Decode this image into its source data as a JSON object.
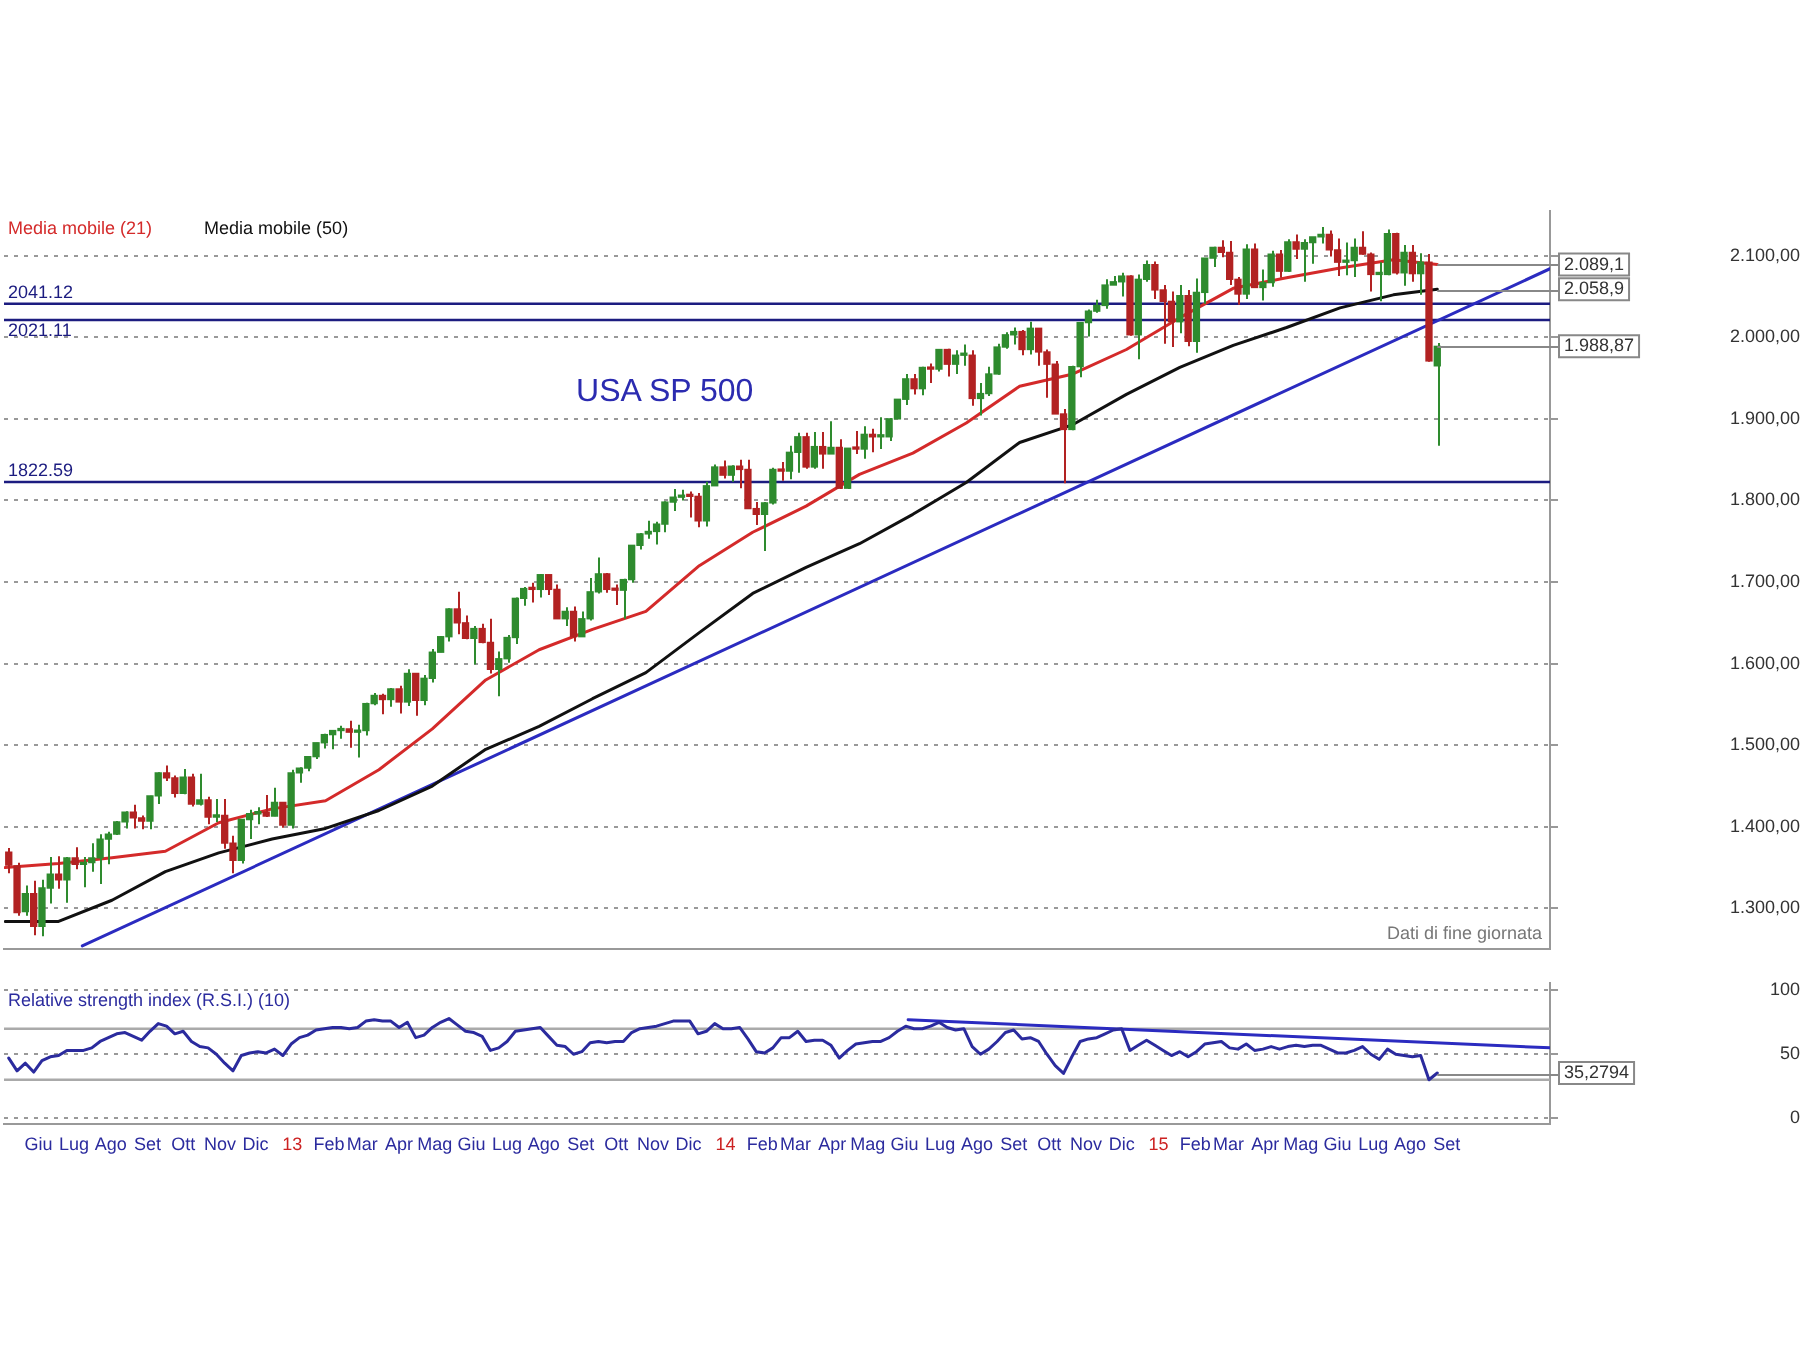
{
  "chart_data": [
    {
      "type": "candlestick",
      "title": "USA SP 500",
      "legend": "top left",
      "marker": "none",
      "grid": "y",
      "tick_labels": "y",
      "x": [
        "2012-05-07",
        "2012-05-14",
        "2012-05-21",
        "2012-05-28",
        "2012-06-04",
        "2012-06-11",
        "2012-06-18",
        "2012-06-25",
        "2012-07-02",
        "2012-07-09",
        "2012-07-16",
        "2012-07-23",
        "2012-07-30",
        "2012-08-06",
        "2012-08-13",
        "2012-08-20",
        "2012-08-27",
        "2012-09-03",
        "2012-09-10",
        "2012-09-17",
        "2012-09-24",
        "2012-10-01",
        "2012-10-08",
        "2012-10-15",
        "2012-10-22",
        "2012-10-29",
        "2012-11-05",
        "2012-11-12",
        "2012-11-19",
        "2012-11-26",
        "2012-12-03",
        "2012-12-10",
        "2012-12-17",
        "2012-12-24",
        "2012-12-31",
        "2013-01-07",
        "2013-01-14",
        "2013-01-21",
        "2013-01-28",
        "2013-02-04",
        "2013-02-11",
        "2013-02-18",
        "2013-02-25",
        "2013-03-04",
        "2013-03-11",
        "2013-03-18",
        "2013-03-25",
        "2013-04-01",
        "2013-04-08",
        "2013-04-15",
        "2013-04-22",
        "2013-04-29",
        "2013-05-06",
        "2013-05-13",
        "2013-05-20",
        "2013-05-27",
        "2013-06-03",
        "2013-06-10",
        "2013-06-17",
        "2013-06-24",
        "2013-07-01",
        "2013-07-08",
        "2013-07-15",
        "2013-07-22",
        "2013-07-29",
        "2013-08-05",
        "2013-08-12",
        "2013-08-19",
        "2013-08-26",
        "2013-09-02",
        "2013-09-09",
        "2013-09-16",
        "2013-09-23",
        "2013-09-30",
        "2013-10-07",
        "2013-10-14",
        "2013-10-21",
        "2013-10-28",
        "2013-11-04",
        "2013-11-11",
        "2013-11-18",
        "2013-11-25",
        "2013-12-02",
        "2013-12-09",
        "2013-12-16",
        "2013-12-23",
        "2013-12-30",
        "2014-01-06",
        "2014-01-13",
        "2014-01-20",
        "2014-01-27",
        "2014-02-03",
        "2014-02-10",
        "2014-02-17",
        "2014-02-24",
        "2014-03-03",
        "2014-03-10",
        "2014-03-17",
        "2014-03-24",
        "2014-03-31",
        "2014-04-07",
        "2014-04-14",
        "2014-04-21",
        "2014-04-28",
        "2014-05-05",
        "2014-05-12",
        "2014-05-19",
        "2014-05-26",
        "2014-06-02",
        "2014-06-09",
        "2014-06-16",
        "2014-06-23",
        "2014-06-30",
        "2014-07-07",
        "2014-07-14",
        "2014-07-21",
        "2014-07-28",
        "2014-08-04",
        "2014-08-11",
        "2014-08-18",
        "2014-08-25",
        "2014-09-01",
        "2014-09-08",
        "2014-09-15",
        "2014-09-22",
        "2014-09-29",
        "2014-10-06",
        "2014-10-13",
        "2014-10-20",
        "2014-10-27",
        "2014-11-03",
        "2014-11-10",
        "2014-11-17",
        "2014-11-24",
        "2014-12-01",
        "2014-12-08",
        "2014-12-15",
        "2014-12-22",
        "2014-12-29",
        "2015-01-05",
        "2015-01-12",
        "2015-01-19",
        "2015-01-26",
        "2015-02-02",
        "2015-02-09",
        "2015-02-16",
        "2015-02-23",
        "2015-03-02",
        "2015-03-09",
        "2015-03-16",
        "2015-03-23",
        "2015-03-30",
        "2015-04-06",
        "2015-04-13",
        "2015-04-20",
        "2015-04-27",
        "2015-05-04",
        "2015-05-11",
        "2015-05-18",
        "2015-05-25",
        "2015-06-01",
        "2015-06-08",
        "2015-06-15",
        "2015-06-22",
        "2015-06-29",
        "2015-07-06",
        "2015-07-13",
        "2015-07-20",
        "2015-07-27",
        "2015-08-03",
        "2015-08-10",
        "2015-08-17",
        "2015-08-24"
      ],
      "ohlc": [
        [
          1369,
          1374,
          1343,
          1353
        ],
        [
          1352,
          1356,
          1291,
          1295
        ],
        [
          1296,
          1328,
          1291,
          1318
        ],
        [
          1318,
          1334,
          1267,
          1278
        ],
        [
          1278,
          1335,
          1266,
          1325
        ],
        [
          1325,
          1363,
          1306,
          1342
        ],
        [
          1342,
          1364,
          1324,
          1335
        ],
        [
          1335,
          1363,
          1307,
          1362
        ],
        [
          1362,
          1375,
          1348,
          1354
        ],
        [
          1354,
          1363,
          1326,
          1356
        ],
        [
          1356,
          1380,
          1345,
          1362
        ],
        [
          1362,
          1391,
          1330,
          1385
        ],
        [
          1385,
          1394,
          1354,
          1391
        ],
        [
          1391,
          1407,
          1390,
          1406
        ],
        [
          1406,
          1419,
          1398,
          1418
        ],
        [
          1418,
          1427,
          1398,
          1411
        ],
        [
          1411,
          1414,
          1397,
          1407
        ],
        [
          1407,
          1438,
          1397,
          1438
        ],
        [
          1438,
          1467,
          1428,
          1466
        ],
        [
          1466,
          1475,
          1456,
          1460
        ],
        [
          1460,
          1463,
          1436,
          1441
        ],
        [
          1441,
          1471,
          1440,
          1461
        ],
        [
          1461,
          1465,
          1425,
          1428
        ],
        [
          1428,
          1465,
          1426,
          1433
        ],
        [
          1433,
          1437,
          1403,
          1412
        ],
        [
          1412,
          1434,
          1406,
          1414
        ],
        [
          1414,
          1434,
          1373,
          1380
        ],
        [
          1380,
          1389,
          1343,
          1359
        ],
        [
          1359,
          1409,
          1355,
          1409
        ],
        [
          1409,
          1421,
          1385,
          1416
        ],
        [
          1416,
          1424,
          1403,
          1418
        ],
        [
          1418,
          1439,
          1412,
          1413
        ],
        [
          1413,
          1448,
          1413,
          1430
        ],
        [
          1430,
          1430,
          1399,
          1402
        ],
        [
          1402,
          1470,
          1398,
          1466
        ],
        [
          1466,
          1473,
          1454,
          1472
        ],
        [
          1472,
          1486,
          1468,
          1486
        ],
        [
          1486,
          1503,
          1483,
          1503
        ],
        [
          1503,
          1514,
          1496,
          1513
        ],
        [
          1513,
          1518,
          1495,
          1518
        ],
        [
          1518,
          1524,
          1508,
          1520
        ],
        [
          1520,
          1530,
          1497,
          1516
        ],
        [
          1516,
          1525,
          1485,
          1518
        ],
        [
          1518,
          1552,
          1512,
          1551
        ],
        [
          1551,
          1564,
          1549,
          1561
        ],
        [
          1561,
          1563,
          1538,
          1556
        ],
        [
          1556,
          1570,
          1547,
          1569
        ],
        [
          1569,
          1573,
          1539,
          1553
        ],
        [
          1553,
          1593,
          1548,
          1588
        ],
        [
          1588,
          1588,
          1536,
          1555
        ],
        [
          1555,
          1586,
          1549,
          1582
        ],
        [
          1582,
          1618,
          1577,
          1614
        ],
        [
          1614,
          1634,
          1614,
          1633
        ],
        [
          1633,
          1668,
          1627,
          1667
        ],
        [
          1667,
          1688,
          1636,
          1650
        ],
        [
          1650,
          1659,
          1630,
          1631
        ],
        [
          1631,
          1646,
          1599,
          1643
        ],
        [
          1643,
          1649,
          1625,
          1626
        ],
        [
          1626,
          1655,
          1588,
          1593
        ],
        [
          1593,
          1615,
          1560,
          1606
        ],
        [
          1606,
          1635,
          1601,
          1632
        ],
        [
          1632,
          1681,
          1624,
          1680
        ],
        [
          1680,
          1694,
          1671,
          1692
        ],
        [
          1692,
          1699,
          1675,
          1691
        ],
        [
          1691,
          1710,
          1681,
          1709
        ],
        [
          1709,
          1709,
          1684,
          1691
        ],
        [
          1691,
          1697,
          1655,
          1655
        ],
        [
          1655,
          1669,
          1646,
          1664
        ],
        [
          1664,
          1670,
          1627,
          1633
        ],
        [
          1633,
          1664,
          1633,
          1655
        ],
        [
          1655,
          1705,
          1653,
          1688
        ],
        [
          1688,
          1730,
          1686,
          1710
        ],
        [
          1710,
          1711,
          1687,
          1691
        ],
        [
          1691,
          1697,
          1672,
          1690
        ],
        [
          1690,
          1704,
          1655,
          1703
        ],
        [
          1703,
          1745,
          1699,
          1745
        ],
        [
          1745,
          1760,
          1740,
          1759
        ],
        [
          1759,
          1775,
          1753,
          1762
        ],
        [
          1762,
          1774,
          1746,
          1771
        ],
        [
          1771,
          1799,
          1761,
          1798
        ],
        [
          1798,
          1814,
          1787,
          1804
        ],
        [
          1804,
          1813,
          1800,
          1806
        ],
        [
          1806,
          1811,
          1779,
          1805
        ],
        [
          1805,
          1809,
          1767,
          1775
        ],
        [
          1775,
          1823,
          1768,
          1818
        ],
        [
          1818,
          1844,
          1818,
          1841
        ],
        [
          1841,
          1849,
          1827,
          1831
        ],
        [
          1831,
          1843,
          1823,
          1842
        ],
        [
          1842,
          1850,
          1815,
          1838
        ],
        [
          1838,
          1850,
          1790,
          1790
        ],
        [
          1790,
          1798,
          1770,
          1783
        ],
        [
          1783,
          1798,
          1738,
          1797
        ],
        [
          1797,
          1840,
          1795,
          1838
        ],
        [
          1838,
          1847,
          1824,
          1836
        ],
        [
          1836,
          1867,
          1826,
          1859
        ],
        [
          1859,
          1883,
          1834,
          1878
        ],
        [
          1878,
          1883,
          1839,
          1841
        ],
        [
          1841,
          1884,
          1839,
          1866
        ],
        [
          1866,
          1884,
          1839,
          1857
        ],
        [
          1857,
          1897,
          1857,
          1865
        ],
        [
          1865,
          1875,
          1814,
          1815
        ],
        [
          1815,
          1864,
          1814,
          1864
        ],
        [
          1864,
          1885,
          1857,
          1863
        ],
        [
          1863,
          1891,
          1851,
          1881
        ],
        [
          1881,
          1888,
          1859,
          1878
        ],
        [
          1878,
          1902,
          1863,
          1878
        ],
        [
          1878,
          1901,
          1873,
          1900
        ],
        [
          1900,
          1924,
          1900,
          1924
        ],
        [
          1924,
          1955,
          1917,
          1949
        ],
        [
          1949,
          1955,
          1930,
          1937
        ],
        [
          1937,
          1964,
          1929,
          1963
        ],
        [
          1963,
          1968,
          1944,
          1961
        ],
        [
          1961,
          1985,
          1958,
          1985
        ],
        [
          1985,
          1986,
          1952,
          1967
        ],
        [
          1967,
          1984,
          1955,
          1978
        ],
        [
          1978,
          1991,
          1965,
          1978
        ],
        [
          1978,
          1984,
          1916,
          1925
        ],
        [
          1925,
          1944,
          1904,
          1931
        ],
        [
          1931,
          1964,
          1928,
          1955
        ],
        [
          1955,
          1992,
          1954,
          1988
        ],
        [
          1988,
          2006,
          1986,
          2003
        ],
        [
          2003,
          2012,
          1991,
          2007
        ],
        [
          2007,
          2009,
          1978,
          1985
        ],
        [
          1985,
          2019,
          1979,
          2011
        ],
        [
          2011,
          2011,
          1965,
          1982
        ],
        [
          1982,
          1985,
          1926,
          1967
        ],
        [
          1967,
          1971,
          1906,
          1906
        ],
        [
          1906,
          1912,
          1821,
          1887
        ],
        [
          1887,
          1965,
          1886,
          1964
        ],
        [
          1964,
          2018,
          1951,
          2018
        ],
        [
          2018,
          2034,
          2001,
          2032
        ],
        [
          2032,
          2046,
          2030,
          2039
        ],
        [
          2039,
          2071,
          2035,
          2064
        ],
        [
          2064,
          2075,
          2064,
          2068
        ],
        [
          2068,
          2079,
          2050,
          2075
        ],
        [
          2075,
          2076,
          2002,
          2003
        ],
        [
          2003,
          2077,
          1973,
          2071
        ],
        [
          2071,
          2094,
          2068,
          2089
        ],
        [
          2089,
          2093,
          2047,
          2058
        ],
        [
          2058,
          2064,
          1992,
          2044
        ],
        [
          2044,
          2056,
          1988,
          2019
        ],
        [
          2019,
          2064,
          2005,
          2051
        ],
        [
          2051,
          2058,
          1989,
          1995
        ],
        [
          1995,
          2072,
          1981,
          2055
        ],
        [
          2055,
          2097,
          2041,
          2097
        ],
        [
          2097,
          2111,
          2086,
          2110
        ],
        [
          2110,
          2119,
          2098,
          2104
        ],
        [
          2104,
          2118,
          2064,
          2071
        ],
        [
          2071,
          2074,
          2040,
          2053
        ],
        [
          2053,
          2114,
          2047,
          2108
        ],
        [
          2108,
          2115,
          2061,
          2061
        ],
        [
          2061,
          2083,
          2045,
          2067
        ],
        [
          2067,
          2106,
          2062,
          2102
        ],
        [
          2102,
          2107,
          2073,
          2081
        ],
        [
          2081,
          2120,
          2080,
          2117
        ],
        [
          2117,
          2126,
          2096,
          2108
        ],
        [
          2108,
          2120,
          2068,
          2116
        ],
        [
          2116,
          2123,
          2090,
          2123
        ],
        [
          2123,
          2135,
          2115,
          2126
        ],
        [
          2126,
          2131,
          2099,
          2107
        ],
        [
          2107,
          2121,
          2075,
          2092
        ],
        [
          2092,
          2116,
          2076,
          2094
        ],
        [
          2094,
          2121,
          2074,
          2110
        ],
        [
          2110,
          2130,
          2101,
          2102
        ],
        [
          2102,
          2104,
          2056,
          2077
        ],
        [
          2077,
          2092,
          2044,
          2077
        ],
        [
          2077,
          2132,
          2076,
          2127
        ],
        [
          2127,
          2128,
          2077,
          2079
        ],
        [
          2079,
          2113,
          2063,
          2104
        ],
        [
          2104,
          2113,
          2068,
          2078
        ],
        [
          2078,
          2103,
          2052,
          2092
        ],
        [
          2092,
          2102,
          1970,
          1971
        ],
        [
          1965,
          1993,
          1867,
          1988.87
        ]
      ],
      "colors": [
        "#b22222",
        "#b22222",
        "#2e8b2e",
        "#b22222",
        "#2e8b2e",
        "#2e8b2e",
        "#b22222",
        "#2e8b2e",
        "#b22222",
        "#2e8b2e",
        "#2e8b2e",
        "#2e8b2e",
        "#2e8b2e",
        "#2e8b2e",
        "#2e8b2e",
        "#b22222",
        "#b22222",
        "#2e8b2e",
        "#2e8b2e",
        "#b22222",
        "#b22222",
        "#2e8b2e",
        "#b22222",
        "#2e8b2e",
        "#b22222",
        "#2e8b2e",
        "#b22222",
        "#b22222",
        "#2e8b2e",
        "#2e8b2e",
        "#2e8b2e",
        "#b22222",
        "#2e8b2e",
        "#b22222",
        "#2e8b2e",
        "#2e8b2e",
        "#2e8b2e",
        "#2e8b2e",
        "#2e8b2e",
        "#2e8b2e",
        "#2e8b2e",
        "#b22222",
        "#2e8b2e",
        "#2e8b2e",
        "#2e8b2e",
        "#b22222",
        "#2e8b2e",
        "#b22222",
        "#2e8b2e",
        "#b22222",
        "#2e8b2e",
        "#2e8b2e",
        "#2e8b2e",
        "#2e8b2e",
        "#b22222",
        "#b22222",
        "#2e8b2e",
        "#b22222",
        "#b22222",
        "#2e8b2e",
        "#2e8b2e",
        "#2e8b2e",
        "#2e8b2e",
        "#b22222",
        "#2e8b2e",
        "#b22222",
        "#b22222",
        "#2e8b2e",
        "#b22222",
        "#2e8b2e",
        "#2e8b2e",
        "#2e8b2e",
        "#b22222",
        "#b22222",
        "#2e8b2e",
        "#2e8b2e",
        "#2e8b2e",
        "#2e8b2e",
        "#2e8b2e",
        "#2e8b2e",
        "#2e8b2e",
        "#2e8b2e",
        "#b22222",
        "#b22222",
        "#2e8b2e",
        "#2e8b2e",
        "#b22222",
        "#2e8b2e",
        "#b22222",
        "#b22222",
        "#b22222",
        "#2e8b2e",
        "#2e8b2e",
        "#b22222",
        "#2e8b2e",
        "#2e8b2e",
        "#b22222",
        "#2e8b2e",
        "#b22222",
        "#2e8b2e",
        "#b22222",
        "#2e8b2e",
        "#b22222",
        "#2e8b2e",
        "#b22222",
        "#2e8b2e",
        "#2e8b2e",
        "#2e8b2e",
        "#2e8b2e",
        "#b22222",
        "#2e8b2e",
        "#b22222",
        "#2e8b2e",
        "#b22222",
        "#2e8b2e",
        "#2e8b2e",
        "#b22222",
        "#2e8b2e",
        "#2e8b2e",
        "#2e8b2e",
        "#2e8b2e",
        "#2e8b2e",
        "#b22222",
        "#2e8b2e",
        "#b22222",
        "#b22222",
        "#b22222",
        "#b22222",
        "#2e8b2e",
        "#2e8b2e",
        "#2e8b2e",
        "#2e8b2e",
        "#2e8b2e",
        "#2e8b2e",
        "#2e8b2e",
        "#b22222",
        "#2e8b2e",
        "#2e8b2e",
        "#b22222",
        "#b22222",
        "#b22222",
        "#2e8b2e",
        "#b22222",
        "#2e8b2e",
        "#2e8b2e",
        "#2e8b2e",
        "#b22222",
        "#b22222",
        "#b22222",
        "#2e8b2e",
        "#b22222",
        "#2e8b2e",
        "#2e8b2e",
        "#b22222",
        "#2e8b2e",
        "#b22222",
        "#2e8b2e",
        "#2e8b2e",
        "#2e8b2e",
        "#b22222",
        "#b22222",
        "#2e8b2e",
        "#2e8b2e",
        "#b22222",
        "#b22222",
        "#2e8b2e",
        "#2e8b2e",
        "#b22222",
        "#2e8b2e",
        "#b22222",
        "#2e8b2e",
        "#b22222",
        "#2e8b2e"
      ],
      "series": [
        {
          "name": "Media mobile (21)",
          "type": "line",
          "color": "#d42a2a",
          "x": [
            "2012-05-04",
            "2012-06-18",
            "2012-08-02",
            "2012-09-16",
            "2012-10-31",
            "2012-12-15",
            "2013-01-29",
            "2013-03-15",
            "2013-04-29",
            "2013-06-13",
            "2013-07-28",
            "2013-09-11",
            "2013-10-26",
            "2013-12-10",
            "2014-01-24",
            "2014-03-10",
            "2014-04-24",
            "2014-06-08",
            "2014-07-23",
            "2014-09-06",
            "2014-10-21",
            "2014-12-05",
            "2015-01-19",
            "2015-03-05",
            "2015-04-19",
            "2015-06-03",
            "2015-07-18",
            "2015-08-24"
          ],
          "values": [
            1350,
            1355,
            1362,
            1370,
            1405,
            1422,
            1432,
            1470,
            1520,
            1580,
            1617,
            1642,
            1664,
            1720,
            1761,
            1793,
            1832,
            1858,
            1895,
            1940,
            1955,
            1985,
            2024,
            2060,
            2073,
            2085,
            2095,
            2089.1
          ]
        },
        {
          "name": "Media mobile (50)",
          "type": "line",
          "color": "#111111",
          "x": [
            "2012-05-04",
            "2012-06-18",
            "2012-08-02",
            "2012-09-16",
            "2012-10-31",
            "2012-12-15",
            "2013-01-29",
            "2013-03-15",
            "2013-04-29",
            "2013-06-13",
            "2013-07-28",
            "2013-09-11",
            "2013-10-26",
            "2013-12-10",
            "2014-01-24",
            "2014-03-10",
            "2014-04-24",
            "2014-06-08",
            "2014-07-23",
            "2014-09-06",
            "2014-10-21",
            "2014-12-05",
            "2015-01-19",
            "2015-03-05",
            "2015-04-19",
            "2015-06-03",
            "2015-07-18",
            "2015-08-24"
          ],
          "values": [
            1284,
            1284,
            1310,
            1345,
            1368,
            1385,
            1398,
            1420,
            1450,
            1495,
            1523,
            1557,
            1589,
            1638,
            1686,
            1718,
            1747,
            1783,
            1822,
            1871,
            1893,
            1930,
            1963,
            1990,
            2012,
            2036,
            2052,
            2058.9
          ]
        },
        {
          "type": "line",
          "color": "#2b2bc0",
          "x": [
            "2012-07-08",
            "2015-11-27"
          ],
          "values": [
            1254,
            2084
          ]
        }
      ],
      "xlim": [
        "2012-05-03",
        "2015-11-27"
      ],
      "ylim": [
        1250,
        2155
      ],
      "yticks": [
        {
          "value": 1300,
          "label": "1.300,00"
        },
        {
          "value": 1400,
          "label": "1.400,00"
        },
        {
          "value": 1500,
          "label": "1.500,00"
        },
        {
          "value": 1600,
          "label": "1.600,00"
        },
        {
          "value": 1700,
          "label": "1.700,00"
        },
        {
          "value": 1800,
          "label": "1.800,00"
        },
        {
          "value": 1900,
          "label": "1.900,00"
        },
        {
          "value": 2000,
          "label": "2.000,00"
        },
        {
          "value": 2100,
          "label": "2.100,00"
        }
      ],
      "ref_lines": [
        {
          "axis": "y",
          "value": 2041.12,
          "label": "2041.12",
          "color": "#1c1c80"
        },
        {
          "axis": "y",
          "value": 2021.11,
          "label": "2021.11",
          "color": "#1c1c80"
        },
        {
          "axis": "y",
          "value": 1822.59,
          "label": "1822.59",
          "color": "#1c1c80"
        }
      ],
      "annotations": [
        "Dati di fine giornata",
        {
          "text": "2.089,1",
          "x": "2015-08-24",
          "y": 2089.1
        },
        {
          "text": "2.058,9",
          "x": "2015-08-24",
          "y": 2058.9
        },
        {
          "text": "1.988,87",
          "x": "2015-08-24",
          "y": 1988.87
        }
      ]
    },
    {
      "type": "line",
      "legend": "top left",
      "marker": "none",
      "grid": "y",
      "x": [
        "2012-05-07",
        "2012-05-14",
        "2012-05-21",
        "2012-05-28",
        "2012-06-04",
        "2012-06-11",
        "2012-06-18",
        "2012-06-25",
        "2012-07-02",
        "2012-07-09",
        "2012-07-16",
        "2012-07-23",
        "2012-07-30",
        "2012-08-06",
        "2012-08-13",
        "2012-08-20",
        "2012-08-27",
        "2012-09-03",
        "2012-09-10",
        "2012-09-17",
        "2012-09-24",
        "2012-10-01",
        "2012-10-08",
        "2012-10-15",
        "2012-10-22",
        "2012-10-29",
        "2012-11-05",
        "2012-11-12",
        "2012-11-19",
        "2012-11-26",
        "2012-12-03",
        "2012-12-10",
        "2012-12-17",
        "2012-12-24",
        "2012-12-31",
        "2013-01-07",
        "2013-01-14",
        "2013-01-21",
        "2013-01-28",
        "2013-02-04",
        "2013-02-11",
        "2013-02-18",
        "2013-02-25",
        "2013-03-04",
        "2013-03-11",
        "2013-03-18",
        "2013-03-25",
        "2013-04-01",
        "2013-04-08",
        "2013-04-15",
        "2013-04-22",
        "2013-04-29",
        "2013-05-06",
        "2013-05-13",
        "2013-05-20",
        "2013-05-27",
        "2013-06-03",
        "2013-06-10",
        "2013-06-17",
        "2013-06-24",
        "2013-07-01",
        "2013-07-08",
        "2013-07-15",
        "2013-07-22",
        "2013-07-29",
        "2013-08-05",
        "2013-08-12",
        "2013-08-19",
        "2013-08-26",
        "2013-09-02",
        "2013-09-09",
        "2013-09-16",
        "2013-09-23",
        "2013-09-30",
        "2013-10-07",
        "2013-10-14",
        "2013-10-21",
        "2013-10-28",
        "2013-11-04",
        "2013-11-11",
        "2013-11-18",
        "2013-11-25",
        "2013-12-02",
        "2013-12-09",
        "2013-12-16",
        "2013-12-23",
        "2013-12-30",
        "2014-01-06",
        "2014-01-13",
        "2014-01-20",
        "2014-01-27",
        "2014-02-03",
        "2014-02-10",
        "2014-02-17",
        "2014-02-24",
        "2014-03-03",
        "2014-03-10",
        "2014-03-17",
        "2014-03-24",
        "2014-03-31",
        "2014-04-07",
        "2014-04-14",
        "2014-04-21",
        "2014-04-28",
        "2014-05-05",
        "2014-05-12",
        "2014-05-19",
        "2014-05-26",
        "2014-06-02",
        "2014-06-09",
        "2014-06-16",
        "2014-06-23",
        "2014-06-30",
        "2014-07-07",
        "2014-07-14",
        "2014-07-21",
        "2014-07-28",
        "2014-08-04",
        "2014-08-11",
        "2014-08-18",
        "2014-08-25",
        "2014-09-01",
        "2014-09-08",
        "2014-09-15",
        "2014-09-22",
        "2014-09-29",
        "2014-10-06",
        "2014-10-13",
        "2014-10-20",
        "2014-10-27",
        "2014-11-03",
        "2014-11-10",
        "2014-11-17",
        "2014-11-24",
        "2014-12-01",
        "2014-12-08",
        "2014-12-15",
        "2014-12-22",
        "2014-12-29",
        "2015-01-05",
        "2015-01-12",
        "2015-01-19",
        "2015-01-26",
        "2015-02-02",
        "2015-02-09",
        "2015-02-16",
        "2015-02-23",
        "2015-03-02",
        "2015-03-09",
        "2015-03-16",
        "2015-03-23",
        "2015-03-30",
        "2015-04-06",
        "2015-04-13",
        "2015-04-20",
        "2015-04-27",
        "2015-05-04",
        "2015-05-11",
        "2015-05-18",
        "2015-05-25",
        "2015-06-01",
        "2015-06-08",
        "2015-06-15",
        "2015-06-22",
        "2015-06-29",
        "2015-07-06",
        "2015-07-13",
        "2015-07-20",
        "2015-07-27",
        "2015-08-03",
        "2015-08-10",
        "2015-08-17",
        "2015-08-24"
      ],
      "series": [
        {
          "name": "Relative strength index (R.S.I.) (10)",
          "color": "#2b2b9e",
          "values": [
            47,
            37,
            43,
            36,
            45,
            48,
            49,
            53,
            53,
            53,
            55,
            60,
            63,
            66,
            67,
            64,
            61,
            68,
            74,
            72,
            66,
            68,
            60,
            56,
            55,
            50,
            43,
            37,
            49,
            51,
            52,
            51,
            54,
            49,
            58,
            63,
            65,
            69,
            70,
            71,
            71,
            70,
            71,
            76,
            77,
            76,
            76,
            71,
            75,
            63,
            65,
            71,
            75,
            78,
            73,
            68,
            67,
            64,
            53,
            55,
            60,
            68,
            69,
            70,
            71,
            64,
            57,
            56,
            50,
            52,
            59,
            60,
            59,
            60,
            60,
            67,
            70,
            71,
            72,
            74,
            76,
            76,
            76,
            66,
            68,
            74,
            70,
            70,
            71,
            62,
            52,
            51,
            55,
            63,
            63,
            68,
            60,
            61,
            61,
            57,
            47,
            53,
            58,
            59,
            60,
            60,
            63,
            68,
            72,
            70,
            70,
            72,
            75,
            71,
            69,
            70,
            56,
            50,
            54,
            60,
            67,
            69,
            62,
            63,
            60,
            50,
            41,
            35,
            48,
            60,
            62,
            63,
            66,
            69,
            70,
            53,
            57,
            61,
            57,
            53,
            49,
            52,
            48,
            52,
            58,
            59,
            60,
            55,
            54,
            58,
            53,
            54,
            56,
            54,
            56,
            57,
            56,
            57,
            57,
            54,
            51,
            51,
            53,
            56,
            50,
            46,
            54,
            50,
            49,
            48,
            49,
            30,
            35.2794
          ]
        },
        {
          "color": "#2b2bc0",
          "x": [
            "2014-06-04",
            "2015-11-27"
          ],
          "values": [
            77,
            55
          ]
        }
      ],
      "xlim": [
        "2012-05-03",
        "2015-11-27"
      ],
      "ylim": [
        -5,
        106
      ],
      "yticks": [
        0,
        50,
        100
      ],
      "xticks": [
        {
          "value": "2012-06-01",
          "label": "Giu"
        },
        {
          "value": "2012-07-01",
          "label": "Lug"
        },
        {
          "value": "2012-08-01",
          "label": "Ago"
        },
        {
          "value": "2012-09-01",
          "label": "Set"
        },
        {
          "value": "2012-10-01",
          "label": "Ott"
        },
        {
          "value": "2012-11-01",
          "label": "Nov"
        },
        {
          "value": "2012-12-01",
          "label": "Dic"
        },
        {
          "value": "2013-01-01",
          "label": "13"
        },
        {
          "value": "2013-02-01",
          "label": "Feb"
        },
        {
          "value": "2013-03-01",
          "label": "Mar"
        },
        {
          "value": "2013-04-01",
          "label": "Apr"
        },
        {
          "value": "2013-05-01",
          "label": "Mag"
        },
        {
          "value": "2013-06-01",
          "label": "Giu"
        },
        {
          "value": "2013-07-01",
          "label": "Lug"
        },
        {
          "value": "2013-08-01",
          "label": "Ago"
        },
        {
          "value": "2013-09-01",
          "label": "Set"
        },
        {
          "value": "2013-10-01",
          "label": "Ott"
        },
        {
          "value": "2013-11-01",
          "label": "Nov"
        },
        {
          "value": "2013-12-01",
          "label": "Dic"
        },
        {
          "value": "2014-01-01",
          "label": "14"
        },
        {
          "value": "2014-02-01",
          "label": "Feb"
        },
        {
          "value": "2014-03-01",
          "label": "Mar"
        },
        {
          "value": "2014-04-01",
          "label": "Apr"
        },
        {
          "value": "2014-05-01",
          "label": "Mag"
        },
        {
          "value": "2014-06-01",
          "label": "Giu"
        },
        {
          "value": "2014-07-01",
          "label": "Lug"
        },
        {
          "value": "2014-08-01",
          "label": "Ago"
        },
        {
          "value": "2014-09-01",
          "label": "Set"
        },
        {
          "value": "2014-10-01",
          "label": "Ott"
        },
        {
          "value": "2014-11-01",
          "label": "Nov"
        },
        {
          "value": "2014-12-01",
          "label": "Dic"
        },
        {
          "value": "2015-01-01",
          "label": "15"
        },
        {
          "value": "2015-02-01",
          "label": "Feb"
        },
        {
          "value": "2015-03-01",
          "label": "Mar"
        },
        {
          "value": "2015-04-01",
          "label": "Apr"
        },
        {
          "value": "2015-05-01",
          "label": "Mag"
        },
        {
          "value": "2015-06-01",
          "label": "Giu"
        },
        {
          "value": "2015-07-01",
          "label": "Lug"
        },
        {
          "value": "2015-08-01",
          "label": "Ago"
        },
        {
          "value": "2015-09-01",
          "label": "Set"
        }
      ],
      "ref_lines": [
        {
          "axis": "y",
          "value": 70,
          "color": "#aaaaaa"
        },
        {
          "axis": "y",
          "value": 30,
          "color": "#aaaaaa"
        }
      ],
      "annotations": [
        {
          "text": "35,2794",
          "x": "2015-08-24",
          "y": 35.2794
        }
      ]
    }
  ]
}
